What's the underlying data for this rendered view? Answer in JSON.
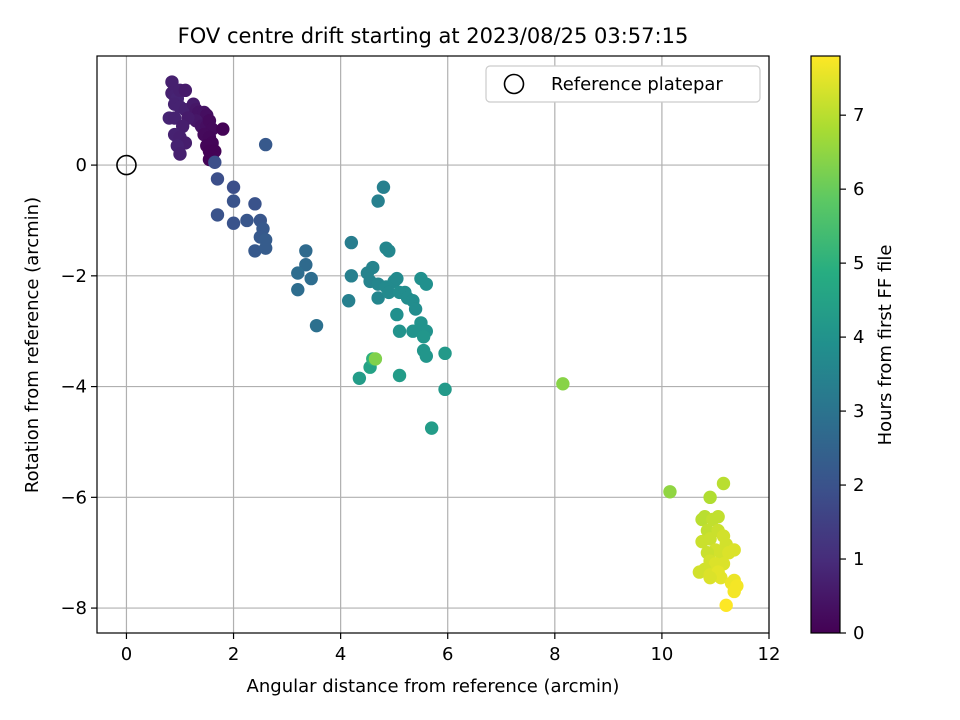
{
  "chart_data": {
    "type": "scatter",
    "title": "FOV centre drift starting at 2023/08/25 03:57:15",
    "xlabel": "Angular distance from reference (arcmin)",
    "ylabel": "Rotation from reference (arcmin)",
    "xlim": [
      -0.55,
      12
    ],
    "ylim": [
      -8.45,
      1.97
    ],
    "xticks": [
      0,
      2,
      4,
      6,
      8,
      10,
      12
    ],
    "yticks": [
      -8,
      -6,
      -4,
      -2,
      0
    ],
    "grid": true,
    "legend": {
      "position": "top-right",
      "entries": [
        "Reference platepar"
      ]
    },
    "reference_point": {
      "x": 0,
      "y": 0,
      "label": "Reference platepar"
    },
    "colorbar": {
      "label": "Hours from first FF file",
      "range": [
        0,
        7.8
      ],
      "ticks": [
        0,
        1,
        2,
        3,
        4,
        5,
        6,
        7
      ],
      "colormap": "viridis"
    },
    "points": [
      [
        0.85,
        1.5,
        0.7
      ],
      [
        0.85,
        1.3,
        0.7
      ],
      [
        0.9,
        1.25,
        0.75
      ],
      [
        0.95,
        1.2,
        0.8
      ],
      [
        1.0,
        1.35,
        0.7
      ],
      [
        1.1,
        1.35,
        0.6
      ],
      [
        0.9,
        1.1,
        0.75
      ],
      [
        1.0,
        1.05,
        0.75
      ],
      [
        1.1,
        1.0,
        0.7
      ],
      [
        1.25,
        1.1,
        0.6
      ],
      [
        1.3,
        1.0,
        0.5
      ],
      [
        1.35,
        0.95,
        0.4
      ],
      [
        1.45,
        0.95,
        0.4
      ],
      [
        1.5,
        0.9,
        0.3
      ],
      [
        1.3,
        0.8,
        0.5
      ],
      [
        1.4,
        0.7,
        0.4
      ],
      [
        1.5,
        0.7,
        0.3
      ],
      [
        1.55,
        0.8,
        0.2
      ],
      [
        1.6,
        0.65,
        0.2
      ],
      [
        1.45,
        0.55,
        0.2
      ],
      [
        1.55,
        0.5,
        0.15
      ],
      [
        1.6,
        0.4,
        0.1
      ],
      [
        1.5,
        0.35,
        0.1
      ],
      [
        1.55,
        0.25,
        0.05
      ],
      [
        1.65,
        0.25,
        0.05
      ],
      [
        1.6,
        0.15,
        0.05
      ],
      [
        1.55,
        0.1,
        0.05
      ],
      [
        1.8,
        0.65,
        0.05
      ],
      [
        0.8,
        0.85,
        0.8
      ],
      [
        0.9,
        0.85,
        0.75
      ],
      [
        1.15,
        0.85,
        0.6
      ],
      [
        1.05,
        0.7,
        0.65
      ],
      [
        0.9,
        0.55,
        0.75
      ],
      [
        1.0,
        0.5,
        0.7
      ],
      [
        1.1,
        0.4,
        0.65
      ],
      [
        0.95,
        0.35,
        0.75
      ],
      [
        1.0,
        0.2,
        0.7
      ],
      [
        1.65,
        0.05,
        1.9
      ],
      [
        1.7,
        -0.25,
        1.9
      ],
      [
        2.0,
        -0.4,
        1.9
      ],
      [
        2.6,
        0.37,
        2.2
      ],
      [
        1.7,
        -0.9,
        2.0
      ],
      [
        2.0,
        -0.65,
        2.0
      ],
      [
        2.0,
        -1.05,
        2.0
      ],
      [
        2.4,
        -0.7,
        2.0
      ],
      [
        2.25,
        -1.0,
        2.1
      ],
      [
        2.5,
        -1.0,
        2.1
      ],
      [
        2.55,
        -1.15,
        2.2
      ],
      [
        2.5,
        -1.3,
        2.2
      ],
      [
        2.6,
        -1.35,
        2.3
      ],
      [
        2.4,
        -1.55,
        2.2
      ],
      [
        2.6,
        -1.5,
        2.3
      ],
      [
        3.35,
        -1.55,
        2.7
      ],
      [
        3.35,
        -1.8,
        2.7
      ],
      [
        3.2,
        -1.95,
        2.8
      ],
      [
        3.45,
        -2.05,
        2.8
      ],
      [
        3.2,
        -2.25,
        2.8
      ],
      [
        3.55,
        -2.9,
        2.9
      ],
      [
        4.2,
        -1.4,
        3.3
      ],
      [
        4.8,
        -0.4,
        3.4
      ],
      [
        4.7,
        -0.65,
        3.4
      ],
      [
        4.2,
        -2.0,
        3.4
      ],
      [
        4.15,
        -2.45,
        3.4
      ],
      [
        4.5,
        -1.95,
        3.5
      ],
      [
        4.6,
        -1.85,
        3.5
      ],
      [
        4.55,
        -2.1,
        3.5
      ],
      [
        4.7,
        -2.15,
        3.6
      ],
      [
        4.85,
        -1.5,
        3.6
      ],
      [
        4.9,
        -1.55,
        3.6
      ],
      [
        4.7,
        -2.4,
        3.6
      ],
      [
        4.85,
        -2.2,
        3.7
      ],
      [
        5.0,
        -2.1,
        3.7
      ],
      [
        5.05,
        -2.05,
        3.7
      ],
      [
        4.9,
        -2.3,
        3.7
      ],
      [
        5.1,
        -2.3,
        3.8
      ],
      [
        5.2,
        -2.3,
        3.8
      ],
      [
        5.25,
        -2.4,
        3.8
      ],
      [
        5.35,
        -2.45,
        3.8
      ],
      [
        5.4,
        -2.6,
        3.8
      ],
      [
        5.05,
        -2.7,
        3.9
      ],
      [
        5.5,
        -2.05,
        3.9
      ],
      [
        5.6,
        -2.15,
        3.9
      ],
      [
        5.1,
        -3.0,
        4.0
      ],
      [
        5.35,
        -3.0,
        4.0
      ],
      [
        5.5,
        -2.85,
        4.0
      ],
      [
        5.55,
        -3.0,
        4.0
      ],
      [
        5.6,
        -3.0,
        4.0
      ],
      [
        5.55,
        -3.1,
        4.1
      ],
      [
        5.55,
        -3.35,
        4.1
      ],
      [
        5.6,
        -3.45,
        4.1
      ],
      [
        5.95,
        -3.4,
        4.2
      ],
      [
        5.1,
        -3.8,
        4.3
      ],
      [
        4.35,
        -3.85,
        4.3
      ],
      [
        4.55,
        -3.65,
        4.5
      ],
      [
        4.6,
        -3.5,
        5.0
      ],
      [
        4.65,
        -3.5,
        6.3
      ],
      [
        5.95,
        -4.05,
        4.2
      ],
      [
        5.7,
        -4.75,
        4.3
      ],
      [
        8.15,
        -3.95,
        6.4
      ],
      [
        10.15,
        -5.9,
        6.5
      ],
      [
        10.9,
        -6.0,
        6.9
      ],
      [
        11.15,
        -5.75,
        7.0
      ],
      [
        10.75,
        -6.4,
        7.0
      ],
      [
        10.8,
        -6.35,
        7.0
      ],
      [
        10.95,
        -6.4,
        7.1
      ],
      [
        11.05,
        -6.35,
        7.1
      ],
      [
        10.85,
        -6.6,
        7.1
      ],
      [
        10.75,
        -6.8,
        7.2
      ],
      [
        10.9,
        -6.75,
        7.2
      ],
      [
        11.05,
        -6.6,
        7.2
      ],
      [
        11.15,
        -6.7,
        7.3
      ],
      [
        11.2,
        -6.85,
        7.3
      ],
      [
        11.0,
        -6.95,
        7.3
      ],
      [
        10.85,
        -7.0,
        7.2
      ],
      [
        11.1,
        -7.0,
        7.3
      ],
      [
        11.25,
        -7.0,
        7.4
      ],
      [
        11.35,
        -6.95,
        7.4
      ],
      [
        10.9,
        -7.15,
        7.3
      ],
      [
        11.0,
        -7.2,
        7.4
      ],
      [
        11.15,
        -7.2,
        7.4
      ],
      [
        10.8,
        -7.3,
        7.3
      ],
      [
        10.7,
        -7.35,
        7.3
      ],
      [
        10.9,
        -7.4,
        7.4
      ],
      [
        11.05,
        -7.35,
        7.5
      ],
      [
        11.1,
        -7.45,
        7.5
      ],
      [
        10.9,
        -7.45,
        7.4
      ],
      [
        11.3,
        -7.55,
        7.6
      ],
      [
        11.35,
        -7.5,
        7.6
      ],
      [
        11.4,
        -7.6,
        7.7
      ],
      [
        11.35,
        -7.7,
        7.7
      ],
      [
        11.2,
        -7.95,
        7.8
      ]
    ]
  }
}
